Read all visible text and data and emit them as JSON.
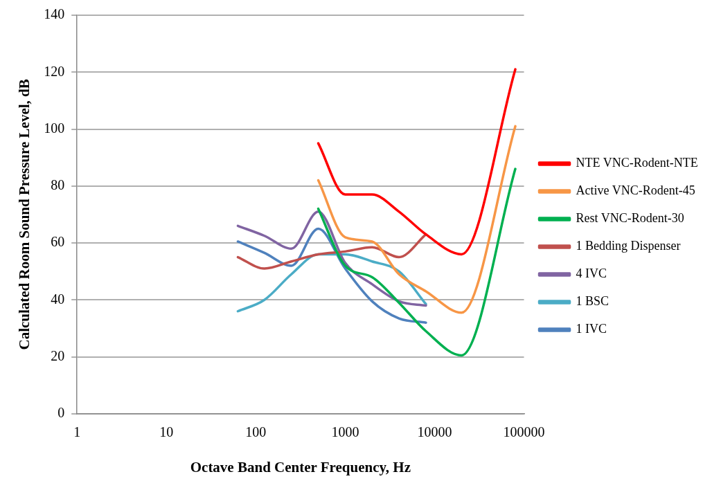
{
  "chart_data": {
    "type": "line",
    "xlabel": "Octave Band Center Frequency, Hz",
    "ylabel": "Calculated Room Sound Pressure Level, dB",
    "log": "x",
    "xlim": [
      1,
      100000
    ],
    "xticks": [
      1,
      10,
      100,
      1000,
      10000,
      100000
    ],
    "ylim": [
      0,
      140
    ],
    "yticks": [
      0,
      20,
      40,
      60,
      80,
      100,
      120,
      140
    ],
    "grid": "y",
    "legend": "right",
    "marker": "none",
    "line_style": "solid",
    "series": [
      {
        "name": "NTE VNC-Rodent-NTE",
        "color": "#ff0000",
        "x": [
          500,
          1000,
          2000,
          4000,
          8000,
          20000,
          80000
        ],
        "values": [
          95,
          77,
          77,
          71,
          63,
          56,
          121
        ]
      },
      {
        "name": "Active VNC-Rodent-45",
        "color": "#f79646",
        "x": [
          500,
          1000,
          2000,
          4000,
          8000,
          20000,
          80000
        ],
        "values": [
          82,
          62,
          60.5,
          49,
          43,
          35.5,
          101
        ]
      },
      {
        "name": "Rest VNC-Rodent-30",
        "color": "#00b050",
        "x": [
          500,
          1000,
          2000,
          4000,
          8000,
          20000,
          80000
        ],
        "values": [
          72,
          52,
          48,
          39,
          29,
          20.5,
          86
        ]
      },
      {
        "name": "1 Bedding Dispenser",
        "color": "#c0504d",
        "x": [
          63,
          125,
          250,
          500,
          1000,
          2000,
          4000,
          8000
        ],
        "values": [
          55,
          51,
          53.5,
          56,
          57,
          58.5,
          55,
          63
        ]
      },
      {
        "name": "4 IVC",
        "color": "#8064a2",
        "x": [
          63,
          125,
          250,
          500,
          1000,
          2000,
          4000,
          8000
        ],
        "values": [
          66,
          62.5,
          58,
          71,
          53,
          45.5,
          39.5,
          38
        ]
      },
      {
        "name": "1 BSC",
        "color": "#4bacc6",
        "x": [
          63,
          125,
          250,
          500,
          1000,
          2000,
          4000,
          8000
        ],
        "values": [
          36,
          40,
          49,
          56,
          56,
          53.5,
          50,
          38.5
        ]
      },
      {
        "name": "1 IVC",
        "color": "#4f81bd",
        "x": [
          63,
          125,
          250,
          500,
          1000,
          2000,
          4000,
          8000
        ],
        "values": [
          60.5,
          56.5,
          52,
          65,
          51,
          39.5,
          33.5,
          32
        ]
      }
    ]
  }
}
